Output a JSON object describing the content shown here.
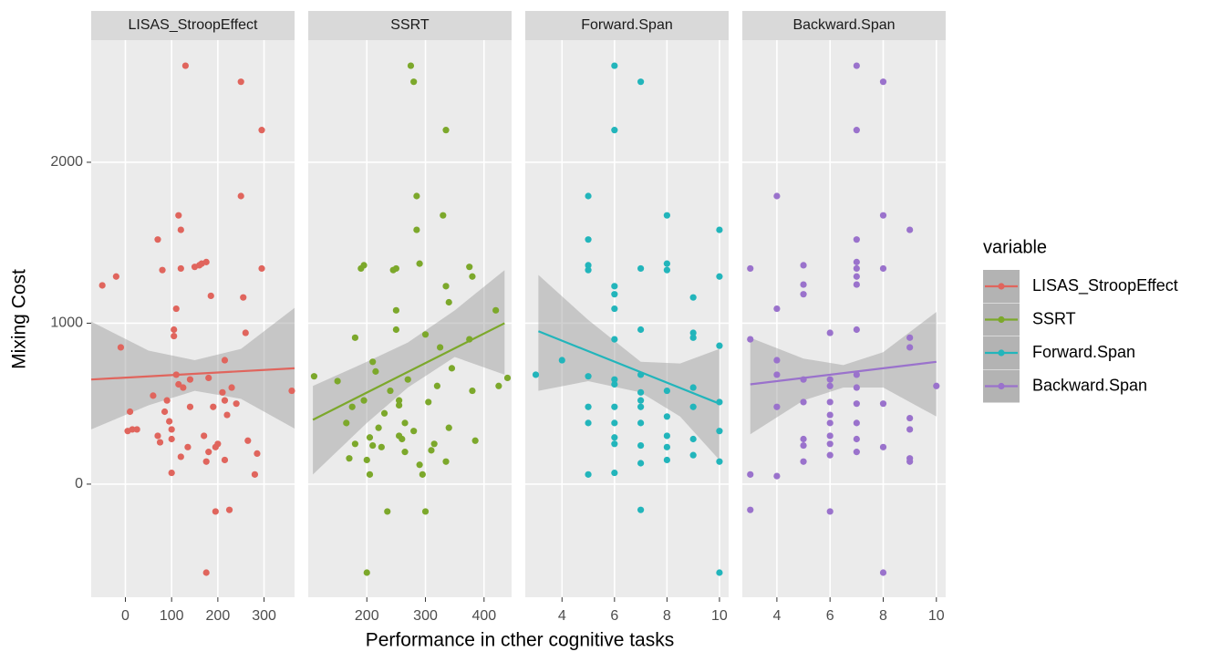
{
  "chart_data": {
    "type": "scatter",
    "y_label": "Mixing Cost",
    "x_label": "Performance in cther cognitive tasks",
    "legend_title": "variable",
    "legend_position": "right",
    "grid": true,
    "ylim": [
      -703,
      2759
    ],
    "yticks": [
      0,
      1000,
      2000
    ],
    "series": [
      {
        "name": "LISAS_StroopEffect",
        "color": "#e0655d",
        "xlim": [
          -74,
          366
        ],
        "xticks": [
          0,
          100,
          200,
          300
        ],
        "x": [
          -50,
          -20,
          -10,
          5,
          15,
          25,
          10,
          60,
          70,
          75,
          70,
          80,
          85,
          90,
          95,
          100,
          100,
          100,
          105,
          105,
          110,
          110,
          115,
          120,
          120,
          115,
          120,
          125,
          130,
          135,
          140,
          140,
          150,
          160,
          165,
          175,
          170,
          175,
          180,
          185,
          180,
          190,
          195,
          195,
          200,
          210,
          215,
          215,
          220,
          215,
          225,
          230,
          240,
          250,
          250,
          255,
          260,
          265,
          280,
          285,
          295,
          295,
          175,
          360
        ],
        "y": [
          1235,
          1290,
          850,
          330,
          340,
          340,
          450,
          550,
          300,
          260,
          1520,
          1330,
          450,
          520,
          390,
          340,
          280,
          70,
          960,
          920,
          680,
          1090,
          1670,
          1580,
          1340,
          620,
          170,
          600,
          2600,
          230,
          650,
          480,
          1350,
          1360,
          1370,
          1380,
          300,
          140,
          200,
          1170,
          660,
          480,
          230,
          -170,
          250,
          570,
          520,
          770,
          430,
          150,
          -160,
          600,
          500,
          2500,
          1790,
          1160,
          940,
          270,
          60,
          190,
          2200,
          1340,
          -550,
          580
        ],
        "fit": {
          "x": [
            -74,
            366
          ],
          "y": [
            650,
            720
          ]
        },
        "band": {
          "x": [
            -74,
            50,
            150,
            250,
            366
          ],
          "upper": [
            1010,
            830,
            770,
            840,
            1095
          ],
          "lower": [
            340,
            490,
            580,
            530,
            345
          ]
        }
      },
      {
        "name": "SSRT",
        "color": "#7ca82b",
        "xlim": [
          100,
          447
        ],
        "xticks": [
          200,
          300,
          400
        ],
        "x": [
          110,
          150,
          165,
          170,
          175,
          180,
          180,
          190,
          195,
          195,
          200,
          200,
          205,
          205,
          210,
          215,
          210,
          220,
          225,
          230,
          235,
          240,
          245,
          250,
          250,
          250,
          255,
          255,
          255,
          260,
          265,
          265,
          270,
          275,
          280,
          280,
          285,
          285,
          290,
          290,
          295,
          300,
          300,
          305,
          310,
          315,
          320,
          325,
          330,
          335,
          335,
          340,
          335,
          340,
          345,
          375,
          375,
          380,
          380,
          385,
          425,
          420,
          440
        ],
        "y": [
          670,
          640,
          380,
          160,
          480,
          910,
          250,
          1340,
          1360,
          520,
          -550,
          150,
          60,
          290,
          760,
          700,
          240,
          350,
          230,
          440,
          -170,
          580,
          1330,
          1340,
          1080,
          960,
          520,
          490,
          300,
          280,
          380,
          200,
          650,
          2600,
          2500,
          330,
          1790,
          1580,
          1370,
          120,
          60,
          -170,
          930,
          510,
          210,
          250,
          610,
          850,
          1670,
          2200,
          1230,
          1130,
          140,
          350,
          720,
          900,
          1350,
          1290,
          580,
          270,
          610,
          1080,
          660
        ],
        "fit": {
          "x": [
            108,
            435
          ],
          "y": [
            400,
            1000
          ]
        },
        "band": {
          "x": [
            108,
            200,
            270,
            350,
            435
          ],
          "upper": [
            610,
            760,
            880,
            1080,
            1330
          ],
          "lower": [
            60,
            380,
            600,
            790,
            680
          ]
        }
      },
      {
        "name": "Forward.Span",
        "color": "#22b5bb",
        "xlim": [
          2.6,
          10.35
        ],
        "xticks": [
          4,
          6,
          8,
          10
        ],
        "x": [
          3,
          4,
          5,
          5,
          5,
          5,
          5,
          5,
          5,
          5,
          6,
          6,
          6,
          6,
          6,
          6,
          6,
          6,
          6,
          6,
          6,
          6,
          6,
          7,
          7,
          7,
          7,
          7,
          7,
          7,
          7,
          7,
          7,
          7,
          8,
          8,
          8,
          8,
          8,
          8,
          8,
          8,
          9,
          9,
          9,
          9,
          9,
          9,
          9,
          10,
          10,
          10,
          10,
          10,
          10,
          10
        ],
        "y": [
          680,
          770,
          1790,
          1520,
          1360,
          1330,
          670,
          480,
          380,
          60,
          2600,
          2200,
          1230,
          1180,
          1090,
          900,
          650,
          620,
          480,
          380,
          290,
          250,
          70,
          2500,
          1340,
          960,
          680,
          570,
          520,
          480,
          380,
          240,
          130,
          -160,
          1670,
          1370,
          1330,
          580,
          420,
          300,
          230,
          150,
          1160,
          940,
          910,
          600,
          480,
          280,
          180,
          1580,
          1290,
          860,
          510,
          330,
          140,
          -550
        ],
        "fit": {
          "x": [
            3.1,
            10
          ],
          "y": [
            950,
            500
          ]
        },
        "band": {
          "x": [
            3.1,
            5,
            7,
            8.5,
            10
          ],
          "upper": [
            1300,
            1020,
            760,
            750,
            840
          ],
          "lower": [
            580,
            640,
            570,
            420,
            150
          ]
        }
      },
      {
        "name": "Backward.Span",
        "color": "#9a72cc",
        "xlim": [
          2.7,
          10.35
        ],
        "xticks": [
          4,
          6,
          8,
          10
        ],
        "x": [
          3,
          3,
          3,
          3,
          4,
          4,
          4,
          4,
          4,
          4,
          5,
          5,
          5,
          5,
          5,
          5,
          5,
          5,
          6,
          6,
          6,
          6,
          6,
          6,
          6,
          6,
          6,
          6,
          7,
          7,
          7,
          7,
          7,
          7,
          7,
          7,
          7,
          7,
          7,
          7,
          7,
          7,
          8,
          8,
          8,
          8,
          8,
          8,
          9,
          9,
          9,
          9,
          9,
          9,
          9,
          10
        ],
        "y": [
          1340,
          900,
          60,
          -160,
          1790,
          1090,
          770,
          680,
          480,
          50,
          1360,
          1240,
          1180,
          650,
          510,
          280,
          240,
          140,
          940,
          650,
          610,
          510,
          430,
          380,
          300,
          250,
          180,
          -170,
          2600,
          2200,
          1520,
          1380,
          1340,
          1290,
          1240,
          960,
          680,
          600,
          500,
          380,
          280,
          200,
          2500,
          1670,
          1340,
          500,
          230,
          -550,
          1580,
          910,
          850,
          410,
          340,
          160,
          140,
          610
        ],
        "fit": {
          "x": [
            3,
            10
          ],
          "y": [
            620,
            760
          ]
        },
        "band": {
          "x": [
            3,
            5,
            6.5,
            8,
            10
          ],
          "upper": [
            910,
            780,
            740,
            820,
            1070
          ],
          "lower": [
            310,
            520,
            600,
            600,
            420
          ]
        }
      }
    ]
  }
}
